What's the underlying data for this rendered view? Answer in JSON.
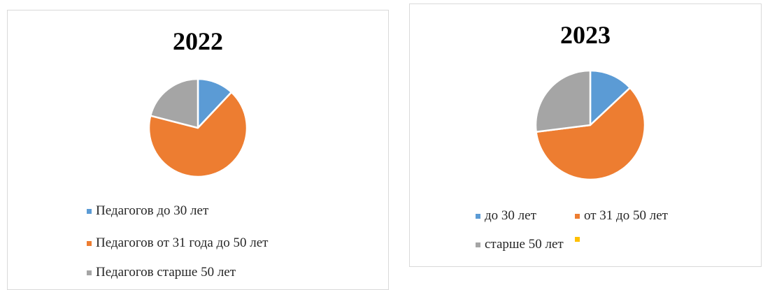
{
  "chart_data": [
    {
      "type": "pie",
      "title": "2022",
      "categories": [
        "Педагогов до 30 лет",
        "Педагогов от 31 года до 50 лет",
        "Педагогов старше 50 лет"
      ],
      "values": [
        12,
        67,
        21
      ],
      "colors": [
        "#5b9bd5",
        "#ed7d31",
        "#a5a5a5"
      ],
      "legend_position": "bottom"
    },
    {
      "type": "pie",
      "title": "2023",
      "categories": [
        "до 30 лет",
        "от 31 до 50 лет",
        "старше 50 лет",
        ""
      ],
      "values": [
        13,
        60,
        27,
        0
      ],
      "colors": [
        "#5b9bd5",
        "#ed7d31",
        "#a5a5a5",
        "#ffc000"
      ],
      "legend_position": "bottom"
    }
  ]
}
